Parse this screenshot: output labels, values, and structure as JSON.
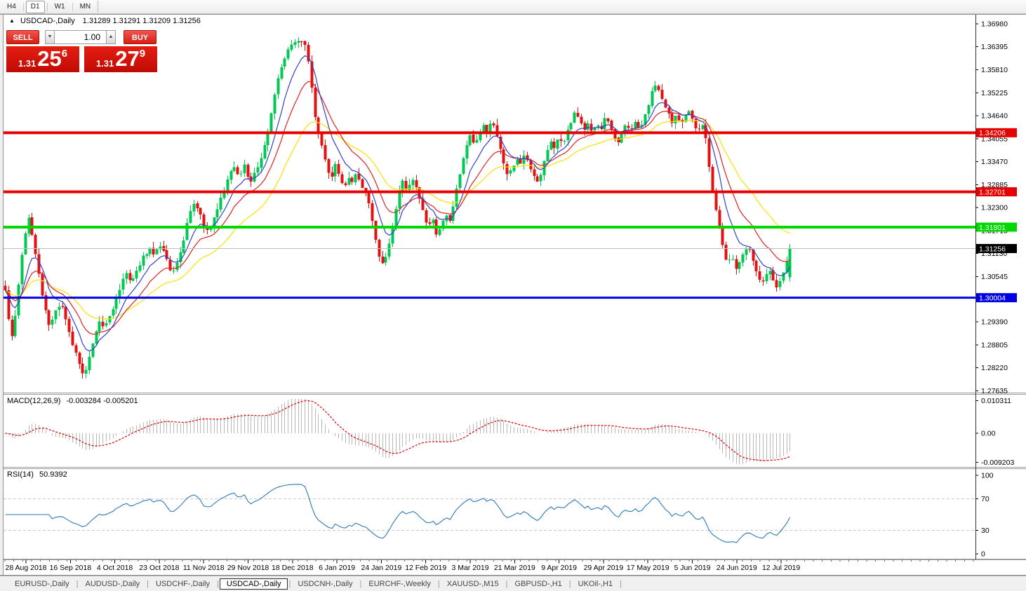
{
  "window": {
    "toolbar_timeframes": [
      {
        "label": "H4",
        "active": false
      },
      {
        "label": "D1",
        "active": true
      },
      {
        "label": "W1",
        "active": false
      },
      {
        "label": "MN",
        "active": false
      }
    ]
  },
  "chart_header": {
    "collapse_arrow": "▲",
    "symbol_title": "USDCAD-,Daily",
    "ohlc_text": "1.31289 1.31291 1.31209 1.31256"
  },
  "trade_panel": {
    "sell_button": "SELL",
    "buy_button": "BUY",
    "volume_value": "1.00",
    "volume_down_arrow": "▼",
    "volume_up_arrow": "▲",
    "sell_price": {
      "prefix": "1.31",
      "big": "25",
      "pip": "6"
    },
    "buy_price": {
      "prefix": "1.31",
      "big": "27",
      "pip": "9"
    }
  },
  "colors": {
    "bull": "#00c853",
    "bear": "#e31212",
    "ma_fast": "#3340cc",
    "ma_mid": "#dd2222",
    "ma_slow": "#ffdf00",
    "resistance": "#e60000",
    "support_green": "#00d800",
    "support_blue": "#0000e6",
    "current_line": "#bebebe",
    "current_label": "#000000",
    "macd_histogram": "#b8b8b8",
    "macd_signal": "#e00000",
    "rsi_line": "#2a7ab8",
    "rsi_levels": "#c8c8c8"
  },
  "chart_data": [
    {
      "type": "candlestick",
      "title": "USDCAD-,Daily",
      "open": "1.31289",
      "high": "1.31291",
      "low": "1.31209",
      "close": "1.31256",
      "y_ticks": [
        1.3698,
        1.36395,
        1.3581,
        1.35225,
        1.3464,
        1.34055,
        1.3347,
        1.32885,
        1.323,
        1.31715,
        1.3113,
        1.30545,
        1.2939,
        1.28805,
        1.2822,
        1.27635
      ],
      "x_labels": [
        "28 Aug 2018",
        "16 Sep 2018",
        "4 Oct 2018",
        "23 Oct 2018",
        "11 Nov 2018",
        "29 Nov 2018",
        "18 Dec 2018",
        "6 Jan 2019",
        "24 Jan 2019",
        "12 Feb 2019",
        "3 Mar 2019",
        "21 Mar 2019",
        "9 Apr 2019",
        "29 Apr 2019",
        "17 May 2019",
        "5 Jun 2019",
        "24 Jun 2019",
        "12 Jul 2019"
      ],
      "levels": [
        {
          "value": 1.34206,
          "label": "1.34206",
          "color": "#e60000",
          "width": 4,
          "style": "line"
        },
        {
          "value": 1.32701,
          "label": "1.32701",
          "color": "#e60000",
          "width": 4,
          "style": "line"
        },
        {
          "value": 1.31801,
          "label": "1.31801",
          "color": "#00d800",
          "width": 4,
          "style": "line"
        },
        {
          "value": 1.30004,
          "label": "1.30004",
          "color": "#0000e6",
          "width": 3,
          "style": "line"
        },
        {
          "value": 1.31256,
          "label": "1.31256",
          "color": "#000000",
          "width": 1,
          "style": "current"
        }
      ],
      "moving_averages": [
        {
          "period": 32,
          "color": "#ffdf00"
        },
        {
          "period": 16,
          "color": "#dd2222"
        },
        {
          "period": 8,
          "color": "#3340cc"
        }
      ],
      "close_waypoints": [
        [
          6,
          1.304
        ],
        [
          11,
          1.295
        ],
        [
          17,
          1.2895
        ],
        [
          23,
          1.2975
        ],
        [
          29,
          1.308
        ],
        [
          36,
          1.317
        ],
        [
          40,
          1.3205
        ],
        [
          46,
          1.316
        ],
        [
          54,
          1.3075
        ],
        [
          62,
          1.2985
        ],
        [
          70,
          1.2925
        ],
        [
          78,
          1.296
        ],
        [
          86,
          1.299
        ],
        [
          94,
          1.294
        ],
        [
          102,
          1.2885
        ],
        [
          110,
          1.285
        ],
        [
          118,
          1.2802
        ],
        [
          124,
          1.283
        ],
        [
          132,
          1.289
        ],
        [
          140,
          1.294
        ],
        [
          148,
          1.292
        ],
        [
          156,
          1.295
        ],
        [
          164,
          1.299
        ],
        [
          172,
          1.3035
        ],
        [
          180,
          1.306
        ],
        [
          188,
          1.304
        ],
        [
          196,
          1.3075
        ],
        [
          204,
          1.3105
        ],
        [
          212,
          1.3125
        ],
        [
          220,
          1.311
        ],
        [
          228,
          1.3135
        ],
        [
          236,
          1.311
        ],
        [
          244,
          1.3055
        ],
        [
          252,
          1.309
        ],
        [
          260,
          1.314
        ],
        [
          268,
          1.32
        ],
        [
          276,
          1.3245
        ],
        [
          284,
          1.322
        ],
        [
          292,
          1.3165
        ],
        [
          300,
          1.318
        ],
        [
          308,
          1.322
        ],
        [
          316,
          1.326
        ],
        [
          324,
          1.33
        ],
        [
          332,
          1.334
        ],
        [
          340,
          1.331
        ],
        [
          348,
          1.334
        ],
        [
          356,
          1.329
        ],
        [
          364,
          1.332
        ],
        [
          372,
          1.336
        ],
        [
          380,
          1.341
        ],
        [
          388,
          1.349
        ],
        [
          396,
          1.356
        ],
        [
          404,
          1.361
        ],
        [
          412,
          1.3635
        ],
        [
          420,
          1.365
        ],
        [
          428,
          1.3658
        ],
        [
          436,
          1.364
        ],
        [
          442,
          1.356
        ],
        [
          448,
          1.347
        ],
        [
          454,
          1.342
        ],
        [
          460,
          1.337
        ],
        [
          466,
          1.333
        ],
        [
          472,
          1.33
        ],
        [
          478,
          1.334
        ],
        [
          484,
          1.33
        ],
        [
          490,
          1.328
        ],
        [
          496,
          1.331
        ],
        [
          502,
          1.329
        ],
        [
          508,
          1.332
        ],
        [
          514,
          1.329
        ],
        [
          520,
          1.327
        ],
        [
          526,
          1.324
        ],
        [
          532,
          1.318
        ],
        [
          538,
          1.312
        ],
        [
          544,
          1.3085
        ],
        [
          550,
          1.3105
        ],
        [
          556,
          1.3155
        ],
        [
          562,
          1.3215
        ],
        [
          568,
          1.3265
        ],
        [
          574,
          1.33
        ],
        [
          580,
          1.327
        ],
        [
          586,
          1.331
        ],
        [
          592,
          1.329
        ],
        [
          598,
          1.325
        ],
        [
          604,
          1.321
        ],
        [
          610,
          1.318
        ],
        [
          616,
          1.32
        ],
        [
          622,
          1.316
        ],
        [
          628,
          1.318
        ],
        [
          634,
          1.322
        ],
        [
          640,
          1.319
        ],
        [
          646,
          1.324
        ],
        [
          652,
          1.329
        ],
        [
          658,
          1.334
        ],
        [
          664,
          1.338
        ],
        [
          670,
          1.342
        ],
        [
          676,
          1.339
        ],
        [
          682,
          1.342
        ],
        [
          688,
          1.344
        ],
        [
          694,
          1.342
        ],
        [
          700,
          1.345
        ],
        [
          706,
          1.342
        ],
        [
          712,
          1.338
        ],
        [
          718,
          1.334
        ],
        [
          724,
          1.331
        ],
        [
          730,
          1.333
        ],
        [
          736,
          1.336
        ],
        [
          742,
          1.334
        ],
        [
          748,
          1.337
        ],
        [
          754,
          1.334
        ],
        [
          760,
          1.331
        ],
        [
          766,
          1.329
        ],
        [
          772,
          1.333
        ],
        [
          778,
          1.337
        ],
        [
          784,
          1.34
        ],
        [
          790,
          1.338
        ],
        [
          796,
          1.341
        ],
        [
          802,
          1.339
        ],
        [
          808,
          1.343
        ],
        [
          814,
          1.345
        ],
        [
          820,
          1.348
        ],
        [
          826,
          1.345
        ],
        [
          832,
          1.343
        ],
        [
          838,
          1.345
        ],
        [
          844,
          1.342
        ],
        [
          850,
          1.345
        ],
        [
          856,
          1.343
        ],
        [
          862,
          1.346
        ],
        [
          868,
          1.344
        ],
        [
          874,
          1.342
        ],
        [
          880,
          1.339
        ],
        [
          886,
          1.342
        ],
        [
          892,
          1.344
        ],
        [
          898,
          1.342
        ],
        [
          904,
          1.345
        ],
        [
          910,
          1.343
        ],
        [
          916,
          1.345
        ],
        [
          922,
          1.348
        ],
        [
          928,
          1.352
        ],
        [
          934,
          1.3545
        ],
        [
          940,
          1.3525
        ],
        [
          946,
          1.349
        ],
        [
          952,
          1.347
        ],
        [
          958,
          1.344
        ],
        [
          964,
          1.347
        ],
        [
          970,
          1.344
        ],
        [
          976,
          1.346
        ],
        [
          982,
          1.348
        ],
        [
          988,
          1.344
        ],
        [
          994,
          1.343
        ],
        [
          1000,
          1.344
        ],
        [
          1006,
          1.34
        ],
        [
          1012,
          1.331
        ],
        [
          1018,
          1.324
        ],
        [
          1024,
          1.318
        ],
        [
          1030,
          1.313
        ],
        [
          1036,
          1.309
        ],
        [
          1042,
          1.311
        ],
        [
          1048,
          1.307
        ],
        [
          1054,
          1.309
        ],
        [
          1060,
          1.3115
        ],
        [
          1066,
          1.313
        ],
        [
          1072,
          1.3095
        ],
        [
          1078,
          1.306
        ],
        [
          1084,
          1.3035
        ],
        [
          1090,
          1.3055
        ],
        [
          1096,
          1.3075
        ],
        [
          1102,
          1.3045
        ],
        [
          1108,
          1.3025
        ],
        [
          1114,
          1.3055
        ],
        [
          1120,
          1.3085
        ],
        [
          1128,
          1.31256
        ]
      ]
    },
    {
      "type": "macd",
      "label": "MACD(12,26,9)",
      "values_text": "-0.003284 -0.005201",
      "params": {
        "fast": 12,
        "slow": 26,
        "signal": 9
      },
      "y_ticks": [
        "0.010311",
        "0.00",
        "-0.009203"
      ],
      "y_range": [
        -0.009203,
        0.010311
      ]
    },
    {
      "type": "rsi",
      "label": "RSI(14)",
      "value_text": "50.9392",
      "period": 14,
      "y_ticks": [
        100,
        70,
        30,
        0
      ],
      "level_lines": [
        70,
        30
      ],
      "y_range": [
        0,
        100
      ]
    }
  ],
  "bottom_tabs": [
    {
      "label": "EURUSD-,Daily",
      "active": false
    },
    {
      "label": "AUDUSD-,Daily",
      "active": false
    },
    {
      "label": "USDCHF-,Daily",
      "active": false
    },
    {
      "label": "USDCAD-,Daily",
      "active": true
    },
    {
      "label": "USDCNH-,Daily",
      "active": false
    },
    {
      "label": "EURCHF-,Weekly",
      "active": false
    },
    {
      "label": "XAUUSD-,M15",
      "active": false
    },
    {
      "label": "GBPUSD-,H1",
      "active": false
    },
    {
      "label": "UKOil-,H1",
      "active": false
    }
  ]
}
